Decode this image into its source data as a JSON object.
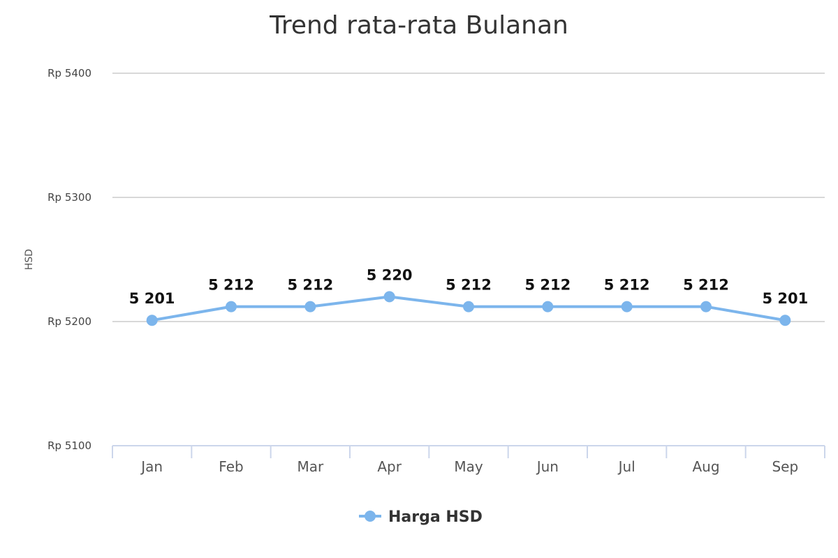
{
  "chart_data": {
    "type": "line",
    "title": "Trend rata-rata Bulanan",
    "ylabel": "HSD",
    "xlabel": "",
    "categories": [
      "Jan",
      "Feb",
      "Mar",
      "Apr",
      "May",
      "Jun",
      "Jul",
      "Aug",
      "Sep"
    ],
    "series": [
      {
        "name": "Harga HSD",
        "color": "#7cb5ec",
        "values": [
          5201,
          5212,
          5212,
          5220,
          5212,
          5212,
          5212,
          5212,
          5201
        ],
        "data_labels": [
          "5 201",
          "5 212",
          "5 212",
          "5 220",
          "5 212",
          "5 212",
          "5 212",
          "5 212",
          "5 201"
        ]
      }
    ],
    "ylim": [
      5100,
      5400
    ],
    "yticks": [
      5100,
      5200,
      5300,
      5400
    ],
    "ytick_labels": [
      "Rp 5100",
      "Rp 5200",
      "Rp 5300",
      "Rp 5400"
    ],
    "grid": true,
    "legend_position": "bottom-center"
  }
}
